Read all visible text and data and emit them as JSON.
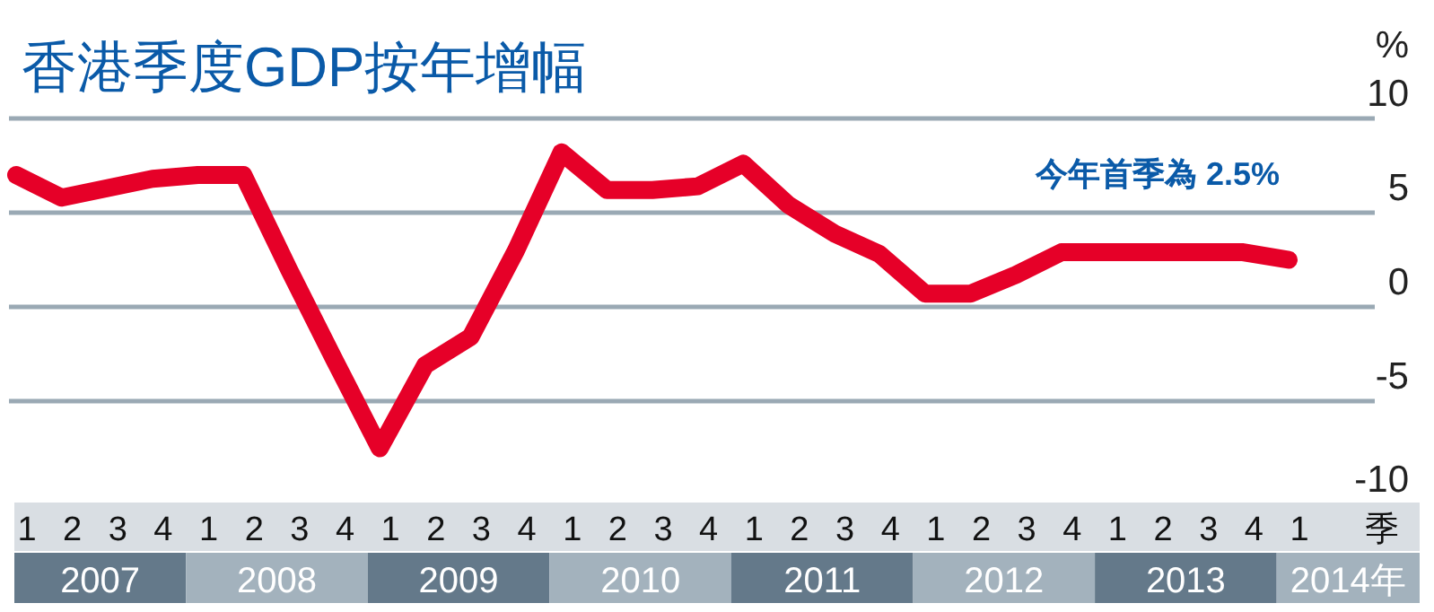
{
  "chart_data": {
    "type": "line",
    "title": "香港季度GDP按年增幅",
    "ylabel": "%",
    "xlabel": "季",
    "categories": [
      "1",
      "2",
      "3",
      "4",
      "1",
      "2",
      "3",
      "4",
      "1",
      "2",
      "3",
      "4",
      "1",
      "2",
      "3",
      "4",
      "1",
      "2",
      "3",
      "4",
      "1",
      "2",
      "3",
      "4",
      "1",
      "2",
      "3",
      "4",
      "1"
    ],
    "series": [
      {
        "color": "#e60028",
        "values": [
          7.0,
          5.8,
          6.3,
          6.8,
          7.0,
          7.0,
          2.0,
          -2.8,
          -7.5,
          -3.1,
          -1.6,
          3.0,
          8.2,
          6.2,
          6.2,
          6.4,
          7.6,
          5.4,
          3.9,
          2.8,
          0.7,
          0.7,
          1.7,
          2.9,
          2.9,
          2.9,
          2.9,
          2.9,
          2.5
        ]
      }
    ],
    "ylim": [
      -10,
      10
    ],
    "yticks": [
      -10,
      -5,
      0,
      5,
      10
    ],
    "grid": "y",
    "marker": "none",
    "line_style": "solid",
    "annotations": [
      "2007",
      "2008",
      "2009",
      "2010",
      "2011",
      "2012",
      "2013",
      "2014年",
      "今年首季為 2.5%"
    ]
  }
}
